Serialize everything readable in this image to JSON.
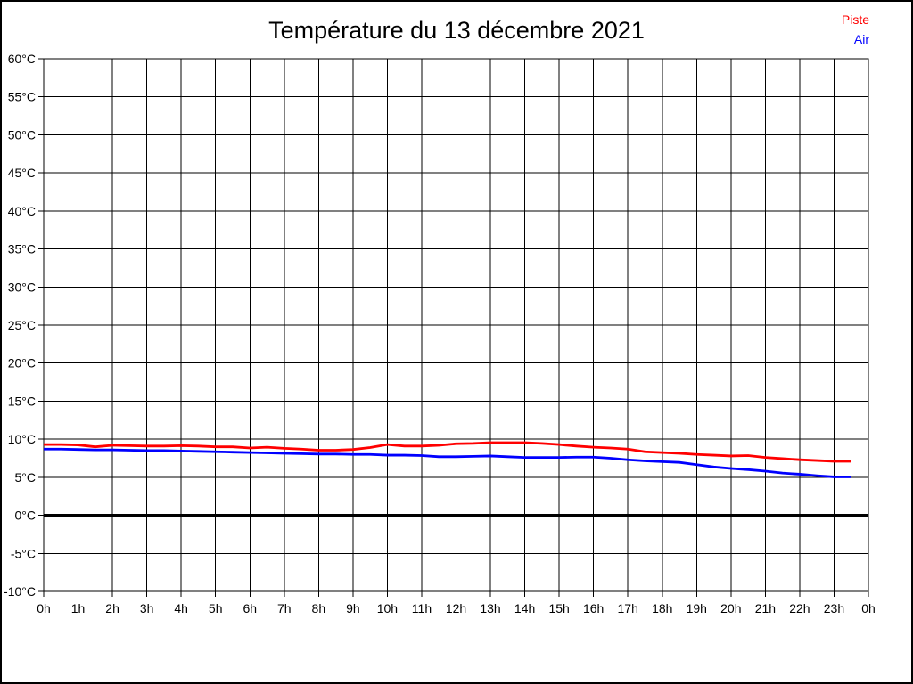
{
  "chart_data": {
    "type": "line",
    "title": "Température du 13 décembre 2021",
    "xlabel": "",
    "ylabel": "",
    "xlim": [
      0,
      24
    ],
    "ylim": [
      -10,
      60
    ],
    "grid": true,
    "grid_color": "#000000",
    "background": "#ffffff",
    "text_color": "#000000",
    "legend_position": "top-right",
    "zero_line": {
      "value": 0,
      "color": "#000000",
      "width": 3.5
    },
    "x_ticks": {
      "step_hours": 1,
      "labels": [
        "0h",
        "1h",
        "2h",
        "3h",
        "4h",
        "5h",
        "6h",
        "7h",
        "8h",
        "9h",
        "10h",
        "11h",
        "12h",
        "13h",
        "14h",
        "15h",
        "16h",
        "17h",
        "18h",
        "19h",
        "20h",
        "21h",
        "22h",
        "23h",
        "0h"
      ]
    },
    "y_ticks": {
      "step_degrees": 5,
      "labels": [
        "60°C",
        "55°C",
        "50°C",
        "45°C",
        "40°C",
        "35°C",
        "30°C",
        "25°C",
        "20°C",
        "15°C",
        "10°C",
        "5°C",
        "0°C",
        "-5°C",
        "-10°C"
      ]
    },
    "x_hours": [
      0,
      0.5,
      1,
      1.5,
      2,
      2.5,
      3,
      3.5,
      4,
      4.5,
      5,
      5.5,
      6,
      6.5,
      7,
      7.5,
      8,
      8.5,
      9,
      9.5,
      10,
      10.5,
      11,
      11.5,
      12,
      12.5,
      13,
      13.5,
      14,
      14.5,
      15,
      15.5,
      16,
      16.5,
      17,
      17.5,
      18,
      18.5,
      19,
      19.5,
      20,
      20.5,
      21,
      21.5,
      22,
      22.5,
      23,
      23.5
    ],
    "series": [
      {
        "name": "Piste",
        "color": "#ff0000",
        "width": 2.8,
        "values": [
          9.3,
          9.3,
          9.25,
          9.0,
          9.2,
          9.15,
          9.1,
          9.1,
          9.15,
          9.1,
          9.0,
          9.0,
          8.85,
          8.95,
          8.8,
          8.7,
          8.55,
          8.55,
          8.65,
          8.9,
          9.3,
          9.1,
          9.1,
          9.2,
          9.4,
          9.45,
          9.55,
          9.55,
          9.55,
          9.45,
          9.3,
          9.1,
          8.95,
          8.85,
          8.7,
          8.35,
          8.25,
          8.15,
          8.0,
          7.9,
          7.8,
          7.85,
          7.6,
          7.45,
          7.3,
          7.2,
          7.1,
          7.1
        ]
      },
      {
        "name": "Air",
        "color": "#0000ff",
        "width": 2.8,
        "values": [
          8.7,
          8.7,
          8.65,
          8.6,
          8.6,
          8.55,
          8.5,
          8.5,
          8.45,
          8.4,
          8.35,
          8.3,
          8.25,
          8.2,
          8.15,
          8.1,
          8.05,
          8.05,
          8.0,
          8.0,
          7.9,
          7.9,
          7.85,
          7.7,
          7.7,
          7.75,
          7.8,
          7.7,
          7.6,
          7.6,
          7.6,
          7.65,
          7.65,
          7.5,
          7.3,
          7.15,
          7.05,
          6.95,
          6.65,
          6.35,
          6.15,
          6.0,
          5.8,
          5.55,
          5.4,
          5.2,
          5.05,
          5.05
        ]
      }
    ]
  }
}
